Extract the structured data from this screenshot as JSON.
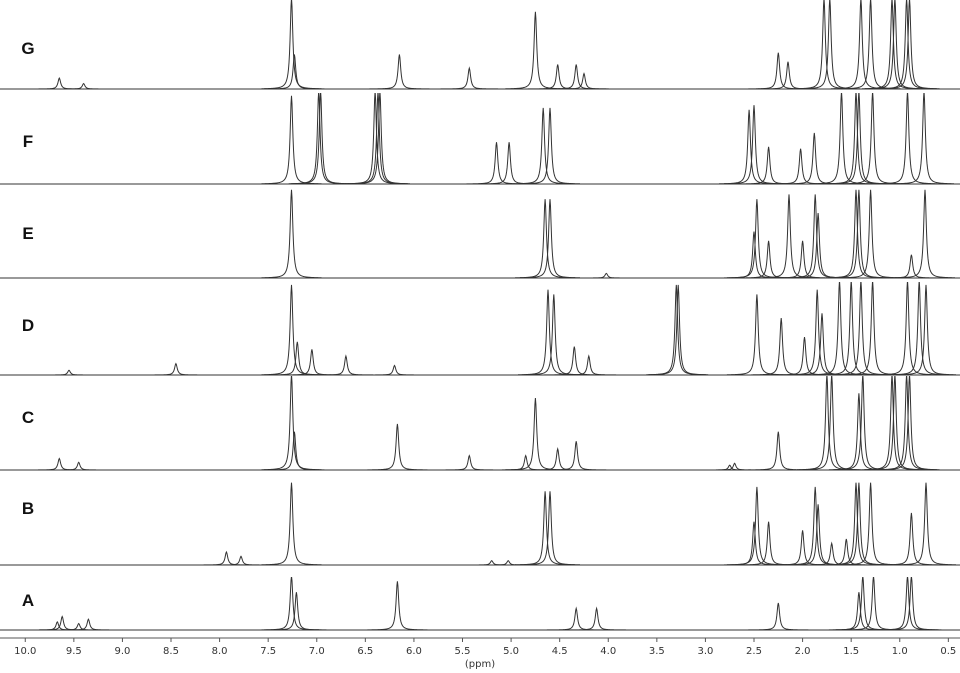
{
  "chart_data": {
    "type": "line",
    "x_label": "(ppm)",
    "xlim": [
      10.26,
      0.38
    ],
    "ylim": [
      0,
      1
    ],
    "xticks": [
      {
        "value": 10,
        "label": "10.0"
      },
      9.5,
      {
        "value": 9,
        "label": "9.0"
      },
      8.5,
      {
        "value": 8,
        "label": "8.0"
      },
      7.5,
      {
        "value": 7,
        "label": "7.0"
      },
      6.5,
      {
        "value": 6,
        "label": "6.0"
      },
      5.5,
      {
        "value": 5,
        "label": "5.0"
      },
      4.5,
      {
        "value": 4,
        "label": "4.0"
      },
      3.5,
      {
        "value": 3,
        "label": "3.0"
      },
      2.5,
      {
        "value": 2,
        "label": "2.0"
      },
      1.5,
      {
        "value": 1,
        "label": "1.0"
      },
      0.5
    ],
    "color": "#333333",
    "series": [
      {
        "name": "A",
        "x": [
          9.67,
          9.62,
          9.45,
          9.35,
          7.26,
          7.21,
          6.17,
          4.33,
          4.12,
          2.25,
          1.42,
          1.38,
          1.27,
          0.92,
          0.88
        ],
        "values": [
          0.15,
          0.25,
          0.12,
          0.2,
          1.0,
          0.7,
          0.9,
          0.4,
          0.4,
          0.5,
          0.7,
          1.0,
          1.0,
          1.0,
          1.0
        ]
      },
      {
        "name": "B",
        "x": [
          7.93,
          7.78,
          7.26,
          5.2,
          5.03,
          4.65,
          4.6,
          2.5,
          2.47,
          2.35,
          2.0,
          1.87,
          1.84,
          1.7,
          1.55,
          1.45,
          1.42,
          1.3,
          0.88,
          0.73
        ],
        "values": [
          0.15,
          0.1,
          0.95,
          0.05,
          0.05,
          0.85,
          0.85,
          0.5,
          0.9,
          0.5,
          0.4,
          0.9,
          0.7,
          0.25,
          0.3,
          0.95,
          0.95,
          0.95,
          0.6,
          0.95
        ]
      },
      {
        "name": "C",
        "x": [
          9.65,
          9.45,
          7.26,
          7.23,
          6.17,
          5.43,
          4.85,
          4.75,
          4.52,
          4.33,
          2.75,
          2.7,
          2.25,
          1.75,
          1.7,
          1.42,
          1.38,
          1.08,
          1.05,
          0.93,
          0.9
        ],
        "values": [
          0.12,
          0.08,
          1.0,
          0.4,
          0.48,
          0.15,
          0.15,
          0.75,
          0.22,
          0.3,
          0.05,
          0.07,
          0.4,
          1.0,
          1.0,
          0.8,
          1.0,
          1.0,
          1.0,
          1.0,
          1.0
        ]
      },
      {
        "name": "D",
        "x": [
          9.55,
          8.45,
          7.26,
          7.2,
          7.05,
          6.7,
          6.2,
          4.62,
          4.56,
          4.35,
          4.2,
          3.3,
          3.28,
          2.47,
          2.22,
          1.98,
          1.85,
          1.8,
          1.62,
          1.5,
          1.4,
          1.28,
          0.92,
          0.8,
          0.73
        ],
        "values": [
          0.05,
          0.12,
          0.95,
          0.35,
          0.27,
          0.2,
          0.1,
          0.9,
          0.85,
          0.3,
          0.2,
          0.95,
          0.95,
          0.85,
          0.6,
          0.4,
          0.9,
          0.65,
          1.0,
          1.0,
          1.0,
          1.0,
          1.0,
          1.0,
          0.95
        ]
      },
      {
        "name": "E",
        "x": [
          7.26,
          4.65,
          4.6,
          4.02,
          2.5,
          2.47,
          2.35,
          2.14,
          2.0,
          1.87,
          1.84,
          1.45,
          1.42,
          1.3,
          0.88,
          0.74
        ],
        "values": [
          0.95,
          0.85,
          0.85,
          0.05,
          0.5,
          0.85,
          0.4,
          0.9,
          0.4,
          0.9,
          0.7,
          0.95,
          0.95,
          0.95,
          0.25,
          0.95
        ]
      },
      {
        "name": "F",
        "x": [
          7.26,
          6.98,
          6.96,
          6.4,
          6.37,
          6.35,
          5.15,
          5.02,
          4.67,
          4.6,
          2.55,
          2.5,
          2.35,
          2.02,
          1.88,
          1.6,
          1.45,
          1.42,
          1.28,
          0.92,
          0.75
        ],
        "values": [
          0.95,
          1.0,
          1.0,
          1.0,
          1.0,
          1.0,
          0.45,
          0.45,
          0.82,
          0.82,
          0.8,
          0.85,
          0.4,
          0.38,
          0.55,
          1.0,
          1.0,
          1.0,
          1.0,
          1.0,
          1.0
        ]
      },
      {
        "name": "G",
        "x": [
          9.65,
          9.4,
          7.26,
          7.23,
          6.15,
          5.43,
          4.75,
          4.52,
          4.33,
          4.25,
          2.25,
          2.15,
          1.78,
          1.72,
          1.4,
          1.3,
          1.08,
          1.05,
          0.93,
          0.9
        ],
        "values": [
          0.12,
          0.06,
          1.0,
          0.38,
          0.38,
          0.23,
          0.85,
          0.27,
          0.27,
          0.17,
          0.4,
          0.3,
          1.0,
          1.0,
          1.0,
          1.0,
          1.0,
          1.0,
          1.0,
          1.0
        ]
      }
    ]
  }
}
